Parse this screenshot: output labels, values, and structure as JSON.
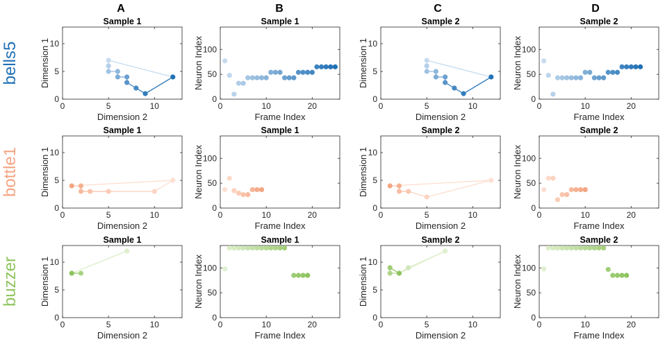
{
  "column_letters": [
    "A",
    "B",
    "C",
    "D"
  ],
  "rows": [
    {
      "label": "bells5",
      "color": "#2171b5",
      "light": "#c6dbef"
    },
    {
      "label": "bottle1",
      "color": "#f4a582",
      "light": "#fde0d2"
    },
    {
      "label": "buzzer",
      "color": "#8fc45f",
      "light": "#dff0cf"
    }
  ],
  "chart_data": [
    {
      "id": "A1",
      "type": "line",
      "title": "Sample  1",
      "xlabel": "Dimension 2",
      "ylabel": "Dimension 1",
      "xlim": [
        0,
        13
      ],
      "ylim": [
        0,
        13
      ],
      "xticks": [
        0,
        5,
        10
      ],
      "yticks": [
        0,
        5,
        10
      ],
      "closed": true,
      "x": [
        5,
        5,
        5,
        6,
        6,
        7,
        7,
        8,
        9,
        12
      ],
      "y": [
        7,
        6,
        5,
        5,
        4,
        4,
        3,
        2,
        1,
        4
      ]
    },
    {
      "id": "B1",
      "type": "scatter",
      "title": "Sample  1",
      "xlabel": "Frame Index",
      "ylabel": "Neuron Index",
      "xlim": [
        0,
        26
      ],
      "ylim": [
        0,
        145
      ],
      "xticks": [
        0,
        10,
        20
      ],
      "yticks": [
        0,
        50,
        100
      ],
      "x": [
        1,
        2,
        3,
        4,
        5,
        6,
        7,
        8,
        9,
        10,
        11,
        12,
        13,
        14,
        15,
        16,
        17,
        18,
        19,
        20,
        21,
        22,
        23,
        24,
        25
      ],
      "y": [
        77,
        48,
        10,
        32,
        32,
        43,
        43,
        43,
        43,
        43,
        54,
        54,
        54,
        43,
        43,
        43,
        54,
        54,
        54,
        54,
        65,
        65,
        65,
        65,
        65
      ]
    },
    {
      "id": "C1",
      "type": "line",
      "title": "Sample  2",
      "xlabel": "Dimension 2",
      "ylabel": "Dimension 1",
      "xlim": [
        0,
        13
      ],
      "ylim": [
        0,
        13
      ],
      "xticks": [
        0,
        5,
        10
      ],
      "yticks": [
        0,
        5,
        10
      ],
      "closed": true,
      "x": [
        5,
        5,
        5,
        6,
        6,
        7,
        7,
        8,
        9,
        12
      ],
      "y": [
        7,
        6,
        5,
        5,
        4,
        4,
        3,
        2,
        1,
        4
      ]
    },
    {
      "id": "D1",
      "type": "scatter",
      "title": "Sample  2",
      "xlabel": "Frame Index",
      "ylabel": "Neuron Index",
      "xlim": [
        0,
        26
      ],
      "ylim": [
        0,
        145
      ],
      "xticks": [
        0,
        10,
        20
      ],
      "yticks": [
        0,
        50,
        100
      ],
      "x": [
        1,
        2,
        3,
        4,
        5,
        6,
        7,
        8,
        9,
        10,
        11,
        12,
        13,
        14,
        15,
        16,
        17,
        18,
        19,
        20,
        21,
        22
      ],
      "y": [
        77,
        48,
        10,
        43,
        43,
        43,
        43,
        43,
        43,
        54,
        54,
        43,
        43,
        43,
        54,
        54,
        54,
        65,
        65,
        65,
        65,
        65
      ]
    },
    {
      "id": "A2",
      "type": "line",
      "title": "Sample  1",
      "xlabel": "Dimension 2",
      "ylabel": "Dimension 1",
      "xlim": [
        0,
        13
      ],
      "ylim": [
        0,
        13
      ],
      "xticks": [
        0,
        5,
        10
      ],
      "yticks": [
        0,
        5,
        10
      ],
      "closed": true,
      "x": [
        12,
        10,
        5,
        3,
        2,
        2,
        1
      ],
      "y": [
        5,
        3,
        3,
        3,
        3,
        4,
        4
      ]
    },
    {
      "id": "B2",
      "type": "scatter",
      "title": "Sample  1",
      "xlabel": "Frame Index",
      "ylabel": "Neuron Index",
      "xlim": [
        0,
        26
      ],
      "ylim": [
        0,
        145
      ],
      "xticks": [
        0,
        10,
        20
      ],
      "yticks": [
        0,
        50,
        100
      ],
      "x": [
        1,
        2,
        3,
        4,
        5,
        6,
        7,
        8,
        9
      ],
      "y": [
        37,
        60,
        35,
        30,
        27,
        27,
        37,
        37,
        37
      ]
    },
    {
      "id": "C2",
      "type": "line",
      "title": "Sample  2",
      "xlabel": "Dimension 2",
      "ylabel": "Dimension 1",
      "xlim": [
        0,
        13
      ],
      "ylim": [
        0,
        13
      ],
      "xticks": [
        0,
        5,
        10
      ],
      "yticks": [
        0,
        5,
        10
      ],
      "closed": true,
      "x": [
        12,
        5,
        3,
        2,
        2,
        1
      ],
      "y": [
        5,
        2,
        3,
        3,
        4,
        4
      ]
    },
    {
      "id": "D2",
      "type": "scatter",
      "title": "Sample  2",
      "xlabel": "Frame Index",
      "ylabel": "Neuron Index",
      "xlim": [
        0,
        26
      ],
      "ylim": [
        0,
        145
      ],
      "xticks": [
        0,
        10,
        20
      ],
      "yticks": [
        0,
        50,
        100
      ],
      "x": [
        1,
        2,
        3,
        4,
        5,
        6,
        7,
        8,
        9,
        10
      ],
      "y": [
        37,
        60,
        60,
        17,
        27,
        27,
        37,
        37,
        37,
        37
      ]
    },
    {
      "id": "A3",
      "type": "line",
      "title": "Sample  1",
      "xlabel": "Dimension 2",
      "ylabel": "Dimension 1",
      "xlim": [
        0,
        13
      ],
      "ylim": [
        0,
        13
      ],
      "xticks": [
        0,
        5,
        10
      ],
      "yticks": [
        0,
        5,
        10
      ],
      "closed": true,
      "x": [
        7,
        1,
        2,
        1
      ],
      "y": [
        12,
        8,
        8,
        8
      ]
    },
    {
      "id": "B3",
      "type": "scatter",
      "title": "Sample  1",
      "xlabel": "Frame Index",
      "ylabel": "Neuron Index",
      "xlim": [
        0,
        26
      ],
      "ylim": [
        0,
        145
      ],
      "xticks": [
        0,
        10,
        20
      ],
      "yticks": [
        0,
        50,
        100
      ],
      "x": [
        1,
        2,
        3,
        4,
        5,
        6,
        7,
        8,
        9,
        10,
        11,
        12,
        13,
        14,
        16,
        17,
        18,
        19
      ],
      "y": [
        98,
        140,
        140,
        140,
        140,
        140,
        140,
        140,
        140,
        140,
        140,
        140,
        140,
        140,
        85,
        85,
        85,
        85
      ]
    },
    {
      "id": "C3",
      "type": "line",
      "title": "Sample  2",
      "xlabel": "Dimension 2",
      "ylabel": "Dimension 1",
      "xlim": [
        0,
        13
      ],
      "ylim": [
        0,
        13
      ],
      "xticks": [
        0,
        5,
        10
      ],
      "yticks": [
        0,
        5,
        10
      ],
      "closed": true,
      "x": [
        7,
        3,
        2,
        1,
        1,
        2
      ],
      "y": [
        12,
        9,
        8,
        8,
        9,
        8
      ]
    },
    {
      "id": "D3",
      "type": "scatter",
      "title": "Sample  2",
      "xlabel": "Frame Index",
      "ylabel": "Neuron Index",
      "xlim": [
        0,
        26
      ],
      "ylim": [
        0,
        145
      ],
      "xticks": [
        0,
        10,
        20
      ],
      "yticks": [
        0,
        50,
        100
      ],
      "x": [
        1,
        2,
        3,
        4,
        5,
        6,
        7,
        8,
        9,
        10,
        11,
        12,
        13,
        14,
        15,
        16,
        17,
        18,
        19
      ],
      "y": [
        98,
        140,
        140,
        140,
        140,
        140,
        140,
        140,
        140,
        140,
        140,
        140,
        140,
        140,
        97,
        85,
        85,
        85,
        85
      ]
    }
  ]
}
